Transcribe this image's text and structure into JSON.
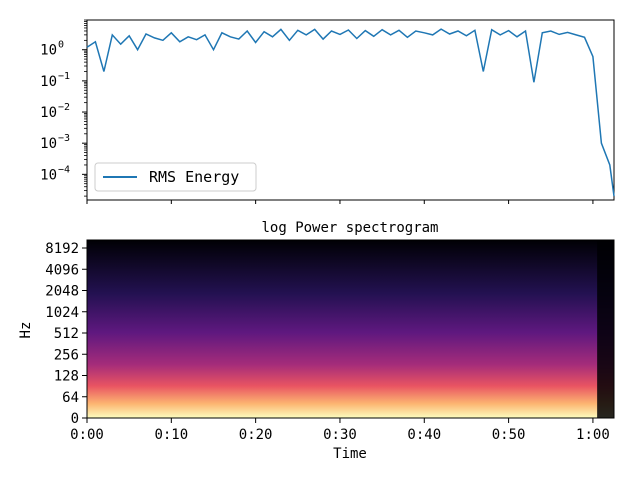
{
  "chart_data": [
    {
      "type": "line",
      "yscale": "log",
      "ylim": [
        1.5e-05,
        9
      ],
      "xlim": [
        0,
        62.5
      ],
      "x_tick_labels": false,
      "y_tick_labels": [
        "10^0",
        "10^-1",
        "10^-2",
        "10^-3",
        "10^-4"
      ],
      "grid": false,
      "legend": {
        "placement": "lower-left",
        "entries": [
          "RMS Energy"
        ]
      },
      "series": [
        {
          "name": "RMS Energy",
          "color": "#1f77b4",
          "x": [
            0,
            1,
            2,
            3,
            4,
            5,
            6,
            7,
            8,
            9,
            10,
            11,
            12,
            13,
            14,
            15,
            16,
            17,
            18,
            19,
            20,
            21,
            22,
            23,
            24,
            25,
            26,
            27,
            28,
            29,
            30,
            31,
            32,
            33,
            34,
            35,
            36,
            37,
            38,
            39,
            40,
            41,
            42,
            43,
            44,
            45,
            46,
            47,
            48,
            49,
            50,
            51,
            52,
            53,
            54,
            55,
            56,
            57,
            58,
            59,
            60,
            61,
            62,
            62.5
          ],
          "y": [
            1.2,
            1.8,
            0.2,
            3.0,
            1.5,
            2.8,
            1.0,
            3.2,
            2.4,
            2.0,
            3.5,
            1.8,
            2.6,
            2.1,
            3.0,
            1.0,
            3.5,
            2.6,
            2.2,
            4.0,
            1.7,
            3.8,
            2.6,
            4.5,
            2.0,
            4.2,
            3.0,
            4.5,
            2.2,
            4.0,
            3.1,
            4.3,
            2.3,
            4.1,
            2.7,
            4.4,
            3.0,
            4.2,
            2.5,
            4.0,
            3.5,
            3.0,
            4.6,
            3.2,
            4.0,
            2.8,
            4.2,
            0.2,
            4.4,
            3.0,
            4.1,
            2.6,
            4.0,
            0.09,
            3.5,
            4.0,
            3.1,
            3.6,
            3.0,
            2.5,
            0.6,
            0.001,
            0.0002,
            2e-05
          ]
        }
      ]
    },
    {
      "type": "heatmap",
      "title": "log Power spectrogram",
      "xlabel": "Time",
      "ylabel": "Hz",
      "colormap": "magma",
      "x_tick_labels": [
        "0:00",
        "0:10",
        "0:20",
        "0:30",
        "0:40",
        "0:50",
        "1:00"
      ],
      "y_tick_labels": [
        "0",
        "64",
        "128",
        "256",
        "512",
        "1024",
        "2048",
        "4096",
        "8192"
      ],
      "xlim": [
        0,
        62.5
      ]
    }
  ]
}
